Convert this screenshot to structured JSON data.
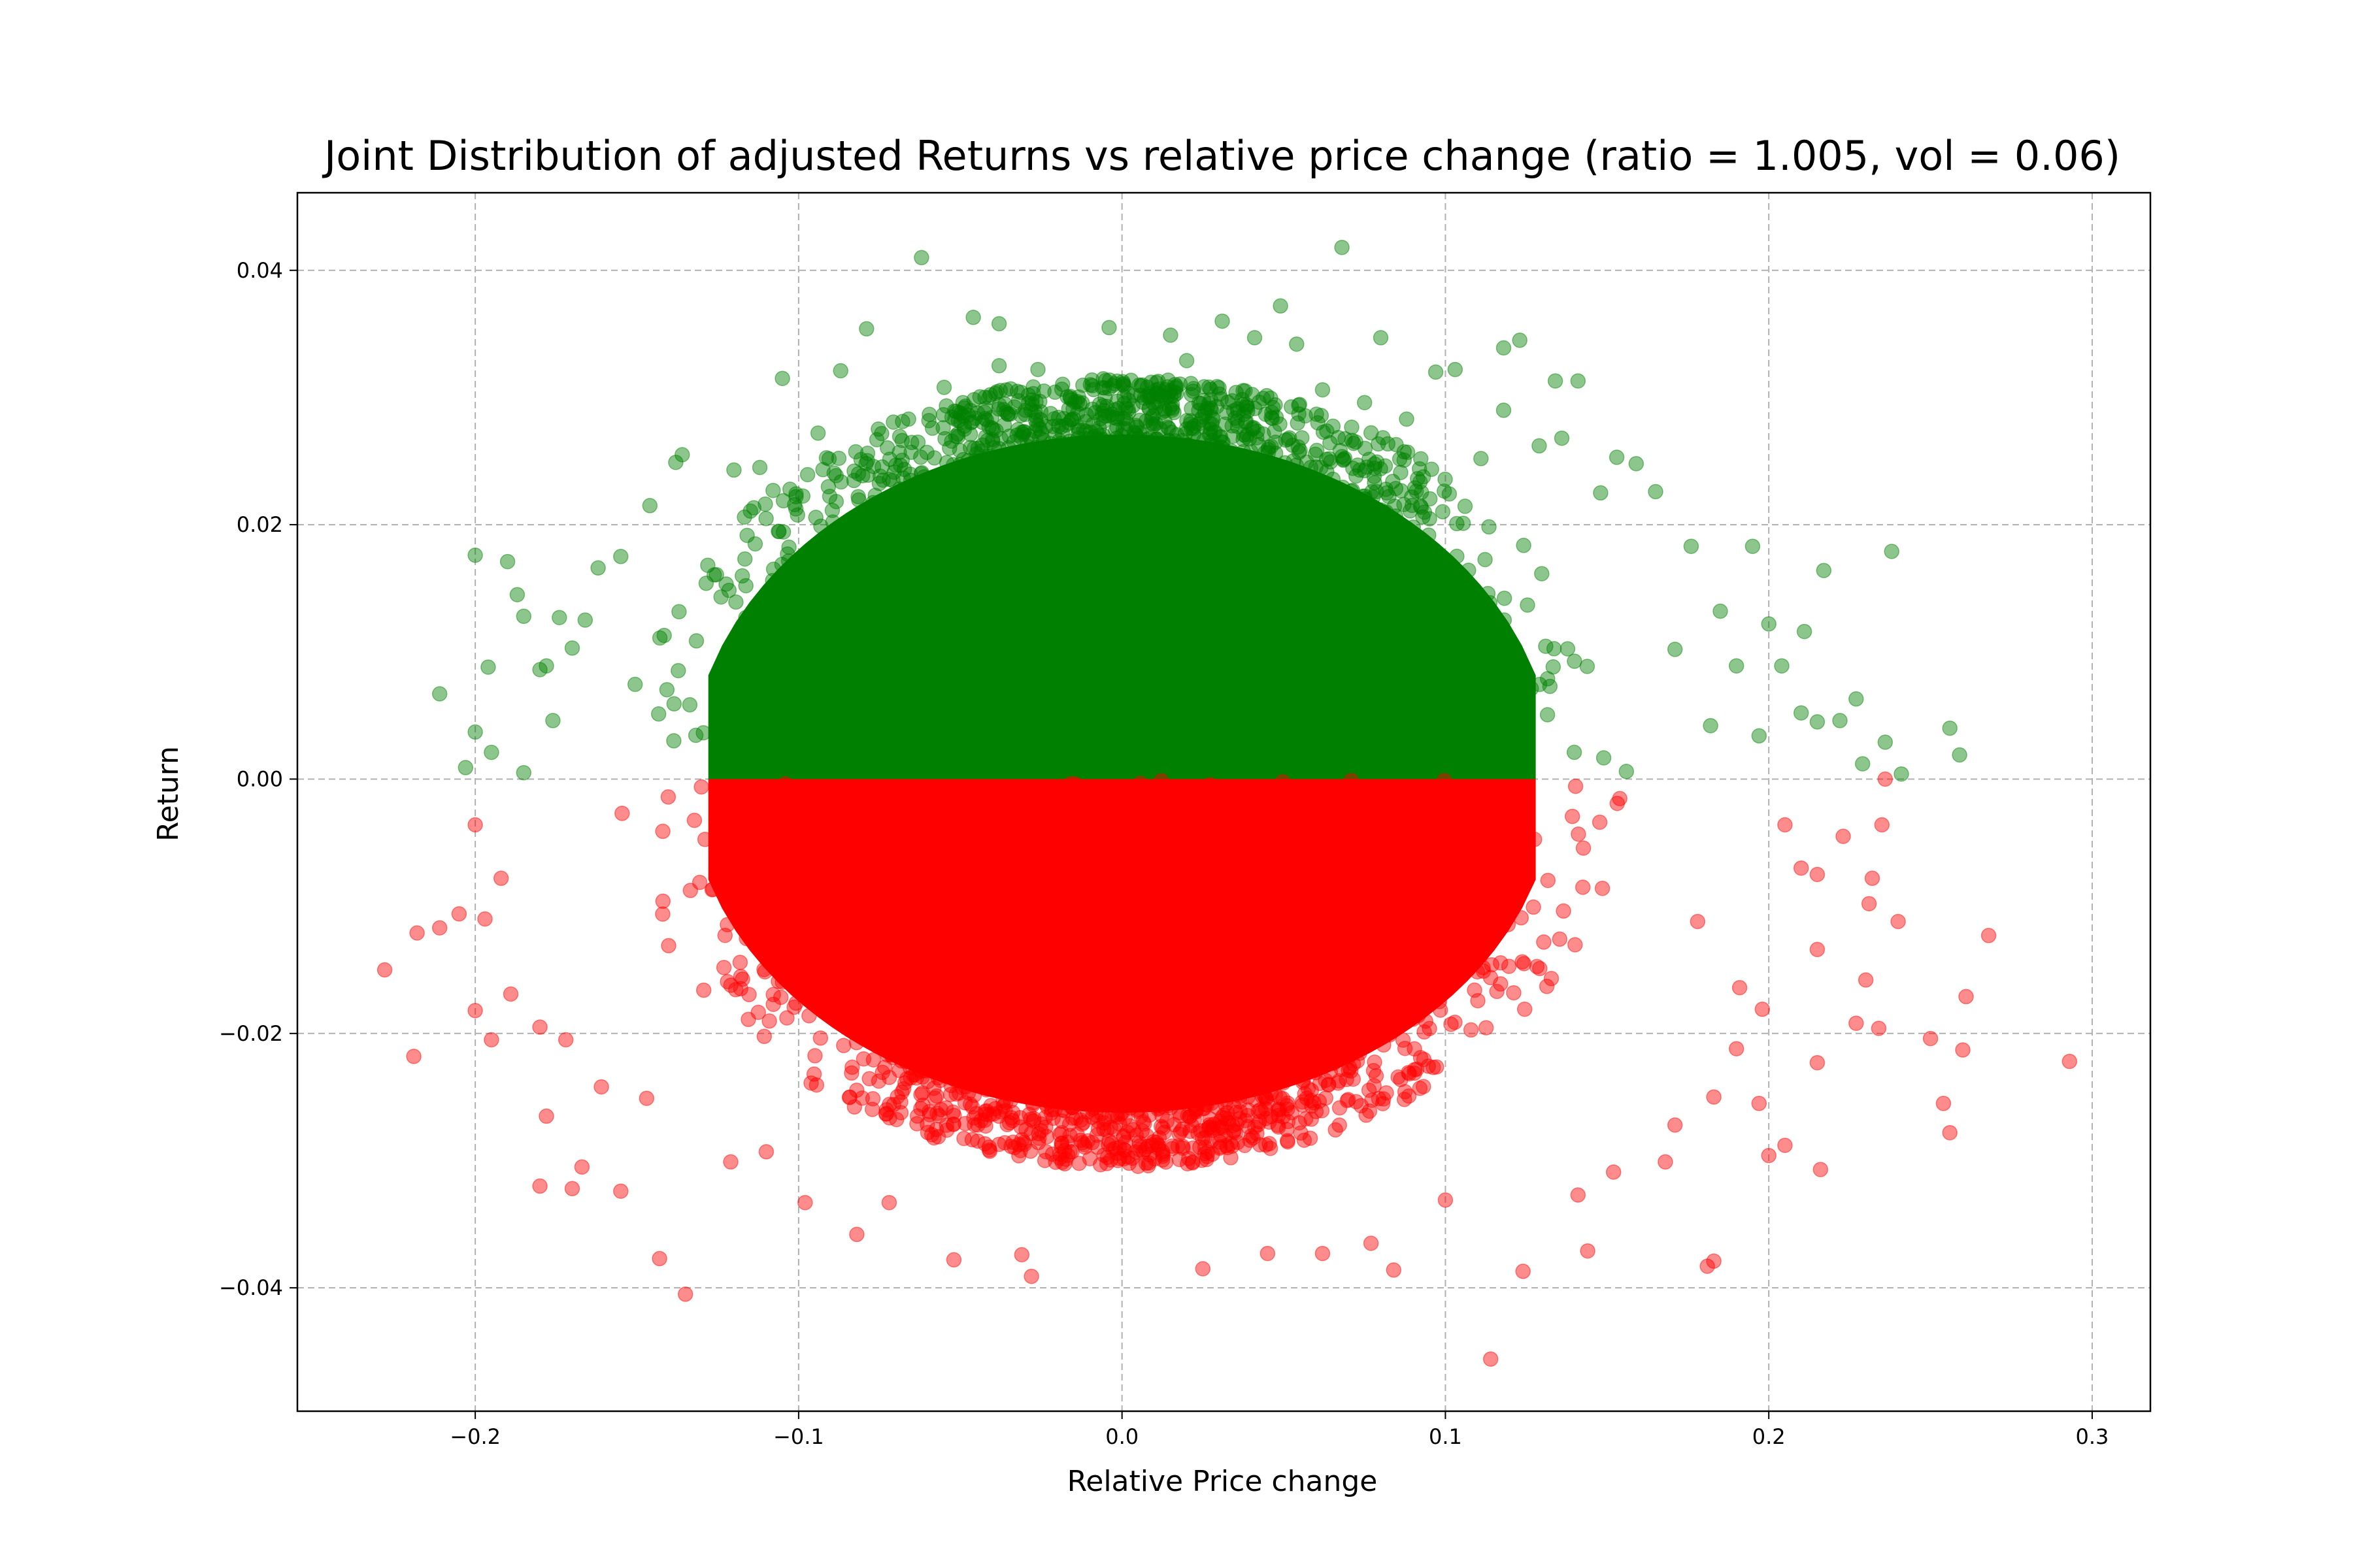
{
  "chart_data": {
    "type": "scatter",
    "title": "Joint Distribution of adjusted Returns vs relative price change (ratio = 1.005, vol = 0.06)",
    "xlabel": "Relative Price change",
    "ylabel": "Return",
    "xlim": [
      -0.255,
      0.318
    ],
    "ylim": [
      -0.0497,
      0.0461
    ],
    "x_ticks": [
      -0.2,
      -0.1,
      0.0,
      0.1,
      0.2,
      0.3
    ],
    "x_tick_labels": [
      "−0.2",
      "−0.1",
      "0.0",
      "0.1",
      "0.2",
      "0.3"
    ],
    "y_ticks": [
      -0.04,
      -0.02,
      0.0,
      0.02,
      0.04
    ],
    "y_tick_labels": [
      "−0.04",
      "−0.02",
      "0.00",
      "0.02",
      "0.04"
    ],
    "grid": true,
    "series": [
      {
        "color": "#008000",
        "opacity": 0.45,
        "condition": "return >= 0",
        "points": [
          [
            -0.062,
            0.041
          ],
          [
            0.068,
            0.0418
          ],
          [
            -0.046,
            0.0363
          ],
          [
            -0.038,
            0.0358
          ],
          [
            0.049,
            0.0372
          ],
          [
            -0.079,
            0.0354
          ],
          [
            0.031,
            0.036
          ],
          [
            -0.004,
            0.0355
          ],
          [
            0.015,
            0.0349
          ],
          [
            0.08,
            0.0347
          ],
          [
            0.123,
            0.0345
          ],
          [
            0.118,
            0.0339
          ],
          [
            0.041,
            0.0347
          ],
          [
            -0.087,
            0.0321
          ],
          [
            -0.105,
            0.0315
          ],
          [
            0.141,
            0.0313
          ],
          [
            0.134,
            0.0313
          ],
          [
            0.097,
            0.032
          ],
          [
            0.103,
            0.0322
          ],
          [
            -0.038,
            0.0325
          ],
          [
            -0.136,
            0.0255
          ],
          [
            -0.138,
            0.0249
          ],
          [
            -0.146,
            0.0215
          ],
          [
            -0.162,
            0.0166
          ],
          [
            -0.2,
            0.0176
          ],
          [
            -0.19,
            0.0171
          ],
          [
            -0.187,
            0.0145
          ],
          [
            -0.185,
            0.0128
          ],
          [
            -0.211,
            0.0067
          ],
          [
            -0.2,
            0.0037
          ],
          [
            -0.203,
            0.0009
          ],
          [
            -0.196,
            0.0088
          ],
          [
            -0.178,
            0.0089
          ],
          [
            -0.174,
            0.0127
          ],
          [
            -0.166,
            0.0125
          ],
          [
            -0.185,
            0.0005
          ],
          [
            -0.195,
            0.0021
          ],
          [
            0.195,
            0.0183
          ],
          [
            0.238,
            0.0179
          ],
          [
            0.217,
            0.0164
          ],
          [
            0.211,
            0.0116
          ],
          [
            0.2,
            0.0122
          ],
          [
            0.227,
            0.0063
          ],
          [
            0.236,
            0.0029
          ],
          [
            0.241,
            0.0004
          ],
          [
            0.256,
            0.004
          ],
          [
            0.259,
            0.0019
          ],
          [
            0.21,
            0.0052
          ],
          [
            0.215,
            0.0045
          ],
          [
            0.222,
            0.0046
          ],
          [
            0.229,
            0.0012
          ],
          [
            0.204,
            0.0089
          ],
          [
            0.185,
            0.0132
          ],
          [
            0.176,
            0.0183
          ],
          [
            0.159,
            0.0248
          ],
          [
            0.165,
            0.0226
          ],
          [
            0.153,
            0.0253
          ],
          [
            0.148,
            0.0225
          ],
          [
            0.136,
            0.0268
          ],
          [
            0.129,
            0.0262
          ],
          [
            0.111,
            0.0252
          ],
          [
            0.088,
            0.0283
          ],
          [
            -0.12,
            0.0243
          ],
          [
            -0.112,
            0.0245
          ],
          [
            -0.094,
            0.0272
          ],
          [
            -0.066,
            0.0283
          ],
          [
            -0.026,
            0.0322
          ],
          [
            0.009,
            0.0312
          ],
          [
            0.062,
            0.0306
          ],
          [
            0.075,
            0.0296
          ],
          [
            -0.055,
            0.0308
          ],
          [
            0.02,
            0.0329
          ],
          [
            0.054,
            0.0342
          ],
          [
            0.118,
            0.029
          ],
          [
            -0.155,
            0.0175
          ],
          [
            -0.17,
            0.0103
          ],
          [
            -0.176,
            0.0046
          ],
          [
            -0.18,
            0.0086
          ],
          [
            0.19,
            0.0089
          ],
          [
            0.197,
            0.0034
          ],
          [
            0.182,
            0.0042
          ],
          [
            0.171,
            0.0102
          ]
        ],
        "dense_region": {
          "x_center": 0.0,
          "x_sd": 0.06,
          "y_min": 0.0,
          "y_max": 0.0315
        }
      },
      {
        "color": "#ff0000",
        "opacity": 0.45,
        "condition": "return < 0",
        "points": [
          [
            -0.135,
            -0.0405
          ],
          [
            -0.143,
            -0.0377
          ],
          [
            0.114,
            -0.0456
          ],
          [
            0.124,
            -0.0387
          ],
          [
            0.144,
            -0.0371
          ],
          [
            0.183,
            -0.0379
          ],
          [
            0.181,
            -0.0383
          ],
          [
            0.084,
            -0.0386
          ],
          [
            0.025,
            -0.0385
          ],
          [
            -0.082,
            -0.0358
          ],
          [
            -0.052,
            -0.0378
          ],
          [
            -0.031,
            -0.0374
          ],
          [
            -0.028,
            -0.0391
          ],
          [
            0.045,
            -0.0373
          ],
          [
            0.062,
            -0.0373
          ],
          [
            0.077,
            -0.0365
          ],
          [
            -0.228,
            -0.015
          ],
          [
            -0.219,
            -0.0218
          ],
          [
            -0.218,
            -0.0121
          ],
          [
            -0.211,
            -0.0117
          ],
          [
            -0.2,
            -0.0182
          ],
          [
            -0.195,
            -0.0205
          ],
          [
            -0.18,
            -0.032
          ],
          [
            -0.17,
            -0.0322
          ],
          [
            -0.155,
            -0.0324
          ],
          [
            -0.178,
            -0.0265
          ],
          [
            -0.167,
            -0.0305
          ],
          [
            -0.18,
            -0.0195
          ],
          [
            -0.197,
            -0.011
          ],
          [
            -0.2,
            -0.0036
          ],
          [
            0.293,
            -0.0222
          ],
          [
            0.268,
            -0.0123
          ],
          [
            0.261,
            -0.0171
          ],
          [
            0.26,
            -0.0213
          ],
          [
            0.254,
            -0.0255
          ],
          [
            0.25,
            -0.0204
          ],
          [
            0.256,
            -0.0278
          ],
          [
            0.234,
            -0.0196
          ],
          [
            0.24,
            -0.0112
          ],
          [
            0.235,
            -0.0036
          ],
          [
            0.231,
            -0.0098
          ],
          [
            0.223,
            -0.0045
          ],
          [
            0.216,
            -0.0307
          ],
          [
            0.2,
            -0.0296
          ],
          [
            0.197,
            -0.0255
          ],
          [
            0.205,
            -0.0288
          ],
          [
            0.215,
            -0.0223
          ],
          [
            0.227,
            -0.0192
          ],
          [
            0.23,
            -0.0158
          ],
          [
            0.215,
            -0.0134
          ],
          [
            0.198,
            -0.0181
          ],
          [
            0.19,
            -0.0212
          ],
          [
            0.183,
            -0.025
          ],
          [
            0.171,
            -0.0272
          ],
          [
            0.168,
            -0.0301
          ],
          [
            0.152,
            -0.0309
          ],
          [
            0.141,
            -0.0327
          ],
          [
            0.1,
            -0.0331
          ],
          [
            -0.11,
            -0.0293
          ],
          [
            -0.121,
            -0.0301
          ],
          [
            -0.098,
            -0.0333
          ],
          [
            -0.072,
            -0.0333
          ],
          [
            -0.147,
            -0.0251
          ],
          [
            -0.161,
            -0.0242
          ],
          [
            0.236,
            0.0
          ],
          [
            0.232,
            -0.0078
          ],
          [
            0.215,
            -0.0075
          ],
          [
            -0.189,
            -0.0169
          ],
          [
            -0.172,
            -0.0205
          ],
          [
            0.205,
            -0.0036
          ],
          [
            0.21,
            -0.007
          ],
          [
            0.191,
            -0.0164
          ],
          [
            0.178,
            -0.0112
          ],
          [
            -0.205,
            -0.0106
          ],
          [
            -0.192,
            -0.0078
          ]
        ],
        "dense_region": {
          "x_center": 0.0,
          "x_sd": 0.06,
          "y_min": -0.0305,
          "y_max": 0.0
        }
      }
    ]
  }
}
